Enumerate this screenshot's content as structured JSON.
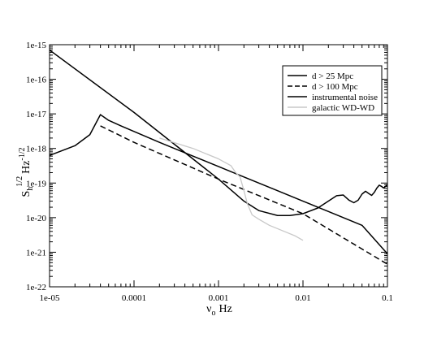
{
  "chart_data": {
    "type": "line",
    "xlabel": "ν",
    "xlabel_sub": "o",
    "xlabel_unit": "Hz",
    "ylabel": "S",
    "ylabel_sub": "h",
    "ylabel_sup": "1/2",
    "ylabel_unit": "Hz",
    "ylabel_unit_sup": "-1/2",
    "x_scale": "log",
    "y_scale": "log",
    "xlim": [
      1e-05,
      0.1
    ],
    "ylim": [
      1e-22,
      1e-15
    ],
    "x_ticks": [
      {
        "value": 1e-05,
        "label": "1e-05"
      },
      {
        "value": 0.0001,
        "label": "0.0001"
      },
      {
        "value": 0.001,
        "label": "0.001"
      },
      {
        "value": 0.01,
        "label": "0.01"
      },
      {
        "value": 0.1,
        "label": "0.1"
      }
    ],
    "y_ticks": [
      {
        "value": 1e-15,
        "label": "1e-15"
      },
      {
        "value": 1e-16,
        "label": "1e-16"
      },
      {
        "value": 1e-17,
        "label": "1e-17"
      },
      {
        "value": 1e-18,
        "label": "1e-18"
      },
      {
        "value": 1e-19,
        "label": "1e-19"
      },
      {
        "value": 1e-20,
        "label": "1e-20"
      },
      {
        "value": 1e-21,
        "label": "1e-21"
      },
      {
        "value": 1e-22,
        "label": "1e-22"
      }
    ],
    "grid": false,
    "legend_position": "top-right",
    "series": [
      {
        "name": "d > 25 Mpc",
        "color": "#000000",
        "dash": "solid",
        "x": [
          1e-05,
          2e-05,
          3e-05,
          4e-05,
          5e-05,
          7e-05,
          0.0001,
          0.0002,
          0.0005,
          0.001,
          0.002,
          0.005,
          0.01,
          0.02,
          0.05,
          0.1
        ],
        "y": [
          6.3e-19,
          1.2e-18,
          2.5e-18,
          9.5e-18,
          6.5e-18,
          4.5e-18,
          3.1e-18,
          1.5e-18,
          6e-19,
          3e-19,
          1.5e-19,
          6e-20,
          3e-20,
          1.5e-20,
          6e-21,
          9e-22
        ]
      },
      {
        "name": "d > 100 Mpc",
        "color": "#000000",
        "dash": "dashed",
        "x": [
          4e-05,
          0.0001,
          0.001,
          0.01,
          0.1
        ],
        "y": [
          4.5e-18,
          1.5e-18,
          1.3e-19,
          1.3e-20,
          4.5e-22
        ]
      },
      {
        "name": "instrumental noise",
        "color": "#000000",
        "dash": "solid",
        "x": [
          1e-05,
          0.0001,
          0.001,
          0.002,
          0.003,
          0.005,
          0.007,
          0.01,
          0.015,
          0.02,
          0.025,
          0.03,
          0.035,
          0.04,
          0.045,
          0.05,
          0.055,
          0.06,
          0.065,
          0.07,
          0.075,
          0.08,
          0.085,
          0.09,
          0.095,
          0.1
        ],
        "y": [
          7e-16,
          1.1e-17,
          1.3e-19,
          3e-20,
          1.6e-20,
          1.15e-20,
          1.15e-20,
          1.3e-20,
          1.9e-20,
          3e-20,
          4.3e-20,
          4.5e-20,
          3.2e-20,
          2.7e-20,
          3.2e-20,
          4.8e-20,
          5.8e-20,
          5e-20,
          4.4e-20,
          5.4e-20,
          7.2e-20,
          8.7e-20,
          8e-20,
          7.2e-20,
          8e-20,
          9.2e-20
        ]
      },
      {
        "name": "galactic WD-WD",
        "color": "#c8c8c8",
        "dash": "solid",
        "x": [
          0.0002,
          0.0005,
          0.001,
          0.0014,
          0.0016,
          0.0018,
          0.002,
          0.0022,
          0.0025,
          0.003,
          0.004,
          0.006,
          0.008,
          0.01
        ],
        "y": [
          2e-18,
          1e-18,
          5e-19,
          3.2e-19,
          2e-19,
          1.5e-19,
          6e-20,
          2.5e-20,
          1.2e-20,
          9e-21,
          6e-21,
          4e-21,
          3e-21,
          2.2e-21
        ]
      }
    ]
  }
}
